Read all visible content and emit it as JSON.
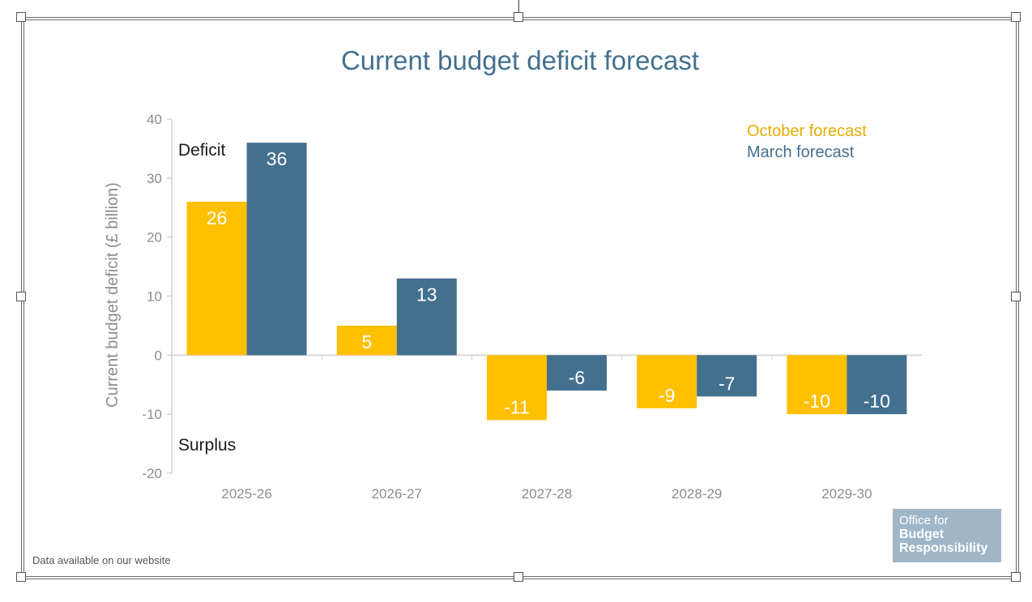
{
  "colors": {
    "october": "#FFC000",
    "march": "#44708F",
    "title": "#44708F",
    "axis_text": "#8C8C8C",
    "logo_bg": "#9FB6C9"
  },
  "chart_data": {
    "type": "bar",
    "title": "Current budget deficit forecast",
    "ylabel": "Current budget deficit (£ billion)",
    "xlabel": "",
    "categories": [
      "2025-26",
      "2026-27",
      "2027-28",
      "2028-29",
      "2029-30"
    ],
    "series": [
      {
        "name": "October forecast",
        "values": [
          26,
          5,
          -11,
          -9,
          -10
        ]
      },
      {
        "name": "March forecast",
        "values": [
          36,
          13,
          -6,
          -7,
          -10
        ]
      }
    ],
    "data_labels": [
      [
        "26",
        "5",
        "-11",
        "-9",
        "-10"
      ],
      [
        "36",
        "13",
        "-6",
        "-7",
        "-10"
      ]
    ],
    "ylim": [
      -20,
      40
    ],
    "yticks": [
      -20,
      -10,
      0,
      10,
      20,
      30,
      40
    ],
    "ytick_labels": [
      "-20",
      "-10",
      "0",
      "10",
      "20",
      "30",
      "40"
    ],
    "annotations": {
      "deficit": "Deficit",
      "surplus": "Surplus"
    },
    "legend_position": "top-right",
    "grid": false
  },
  "footer": {
    "note": "Data available on our website",
    "logo_line1": "Office for",
    "logo_line2": "Budget",
    "logo_line3": "Responsibility"
  }
}
